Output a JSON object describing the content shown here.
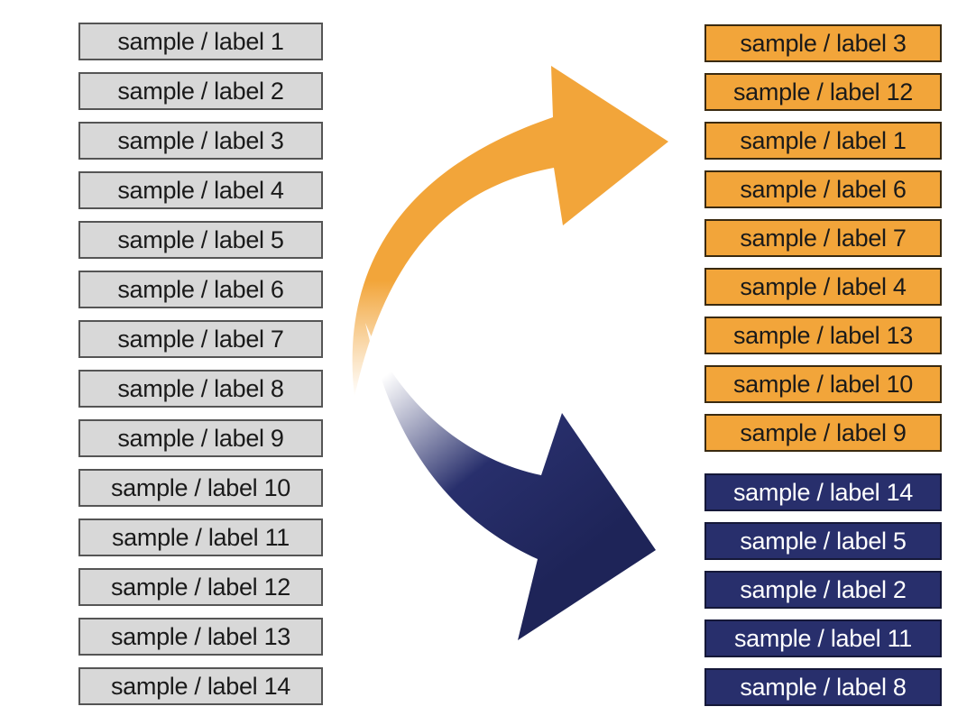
{
  "left_labels": [
    "sample / label 1",
    "sample / label  2",
    "sample / label  3",
    "sample / label  4",
    "sample / label  5",
    "sample / label  6",
    "sample / label  7",
    "sample / label  8",
    "sample / label  9",
    "sample / label  10",
    "sample / label  11",
    "sample / label  12",
    "sample / label  13",
    "sample / label  14"
  ],
  "right_orange_labels": [
    "sample / label  3",
    "sample / label  12",
    "sample / label  1",
    "sample / label  6",
    "sample / label  7",
    "sample / label  4",
    "sample / label  13",
    "sample / label  10",
    "sample / label  9"
  ],
  "right_navy_labels": [
    "sample / label  14",
    "sample / label  5",
    "sample / label  2",
    "sample / label  11",
    "sample / label  8"
  ],
  "colors": {
    "left_box": "#d8d8d8",
    "orange": "#f2a53a",
    "navy": "#282f6c"
  }
}
